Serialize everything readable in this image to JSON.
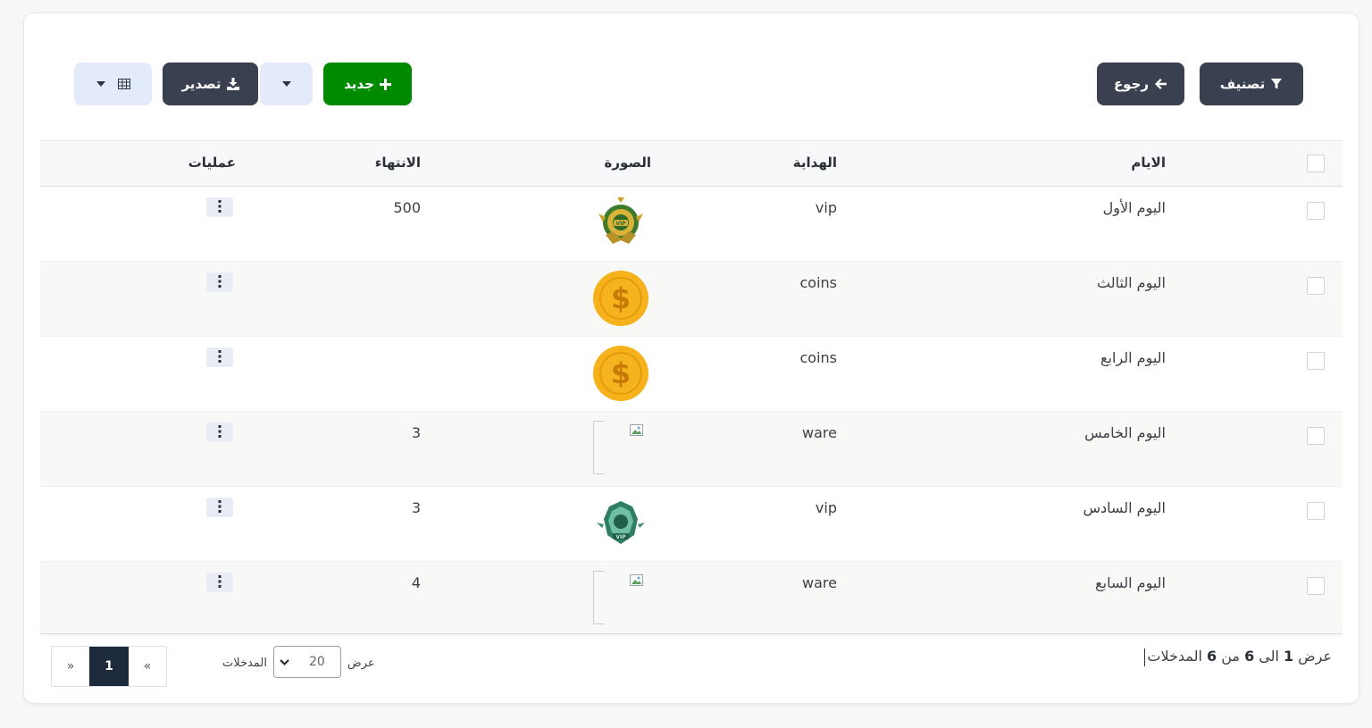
{
  "toolbar": {
    "filter_label": "تصنيف",
    "back_label": "رجوع",
    "new_label": "جديد",
    "export_label": "تصدير"
  },
  "table": {
    "headers": {
      "days": "الايام",
      "gift": "الهداية",
      "image": "الصورة",
      "expiry": "الانتهاء",
      "actions": "عمليات"
    },
    "rows": [
      {
        "day": "اليوم الأول",
        "gift": "vip",
        "image": "vip-gold-badge",
        "expiry": "500"
      },
      {
        "day": "اليوم الثالث",
        "gift": "coins",
        "image": "gold-coin",
        "expiry": ""
      },
      {
        "day": "اليوم الرابع",
        "gift": "coins",
        "image": "gold-coin",
        "expiry": ""
      },
      {
        "day": "اليوم الخامس",
        "gift": "ware",
        "image": "broken-image",
        "expiry": "3"
      },
      {
        "day": "اليوم السادس",
        "gift": "vip",
        "image": "vip-green-badge",
        "expiry": "3"
      },
      {
        "day": "اليوم السابع",
        "gift": "ware",
        "image": "broken-image",
        "expiry": "4"
      }
    ]
  },
  "footer": {
    "info_prefix": "عرض",
    "info_from": "1",
    "info_to_word": "الى",
    "info_to": "6",
    "info_of_word": "من",
    "info_total": "6",
    "info_suffix": "المدخلات",
    "length_show": "عرض",
    "length_value": "20",
    "length_entries": "المدخلات",
    "page_prev": "«",
    "page_current": "1",
    "page_next": "»"
  },
  "colors": {
    "dark_button": "#394150",
    "green_button": "#008a00",
    "light_button": "#e3ebfb",
    "active_page": "#1d2a3b"
  }
}
